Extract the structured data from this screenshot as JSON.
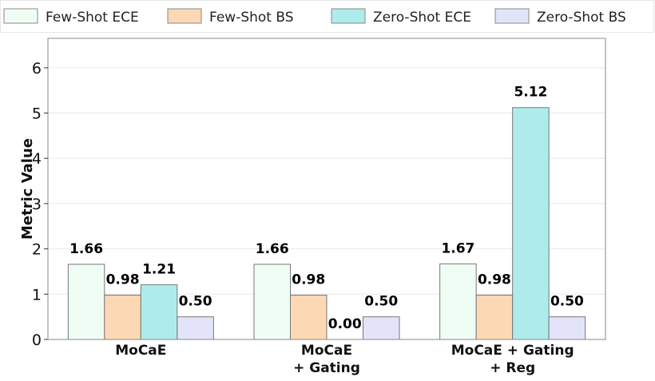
{
  "chart_data": {
    "type": "bar",
    "categories": [
      [
        "MoCaE"
      ],
      [
        "MoCaE",
        "+ Gating"
      ],
      [
        "MoCaE + Gating",
        "+ Reg"
      ]
    ],
    "series": [
      {
        "name": "Few-Shot ECE",
        "values": [
          1.66,
          1.66,
          1.67
        ],
        "labels": [
          "1.66",
          "1.66",
          "1.67"
        ],
        "color": "#f0fdf4"
      },
      {
        "name": "Few-Shot BS",
        "values": [
          0.98,
          0.98,
          0.98
        ],
        "labels": [
          "0.98",
          "0.98",
          "0.98"
        ],
        "color": "#fcd9b4"
      },
      {
        "name": "Zero-Shot ECE",
        "values": [
          1.21,
          0.0,
          5.12
        ],
        "labels": [
          "1.21",
          "0.00",
          "5.12"
        ],
        "color": "#aeecec"
      },
      {
        "name": "Zero-Shot BS",
        "values": [
          0.5,
          0.5,
          0.5
        ],
        "labels": [
          "0.50",
          "0.50",
          "0.50"
        ],
        "color": "#e3e3fa"
      }
    ],
    "ylabel": "Metric Value",
    "xlabel": "",
    "ylim": [
      0,
      6.65
    ],
    "yticks": [
      0,
      1,
      2,
      3,
      4,
      5,
      6
    ],
    "grid": true,
    "legend": "top"
  }
}
